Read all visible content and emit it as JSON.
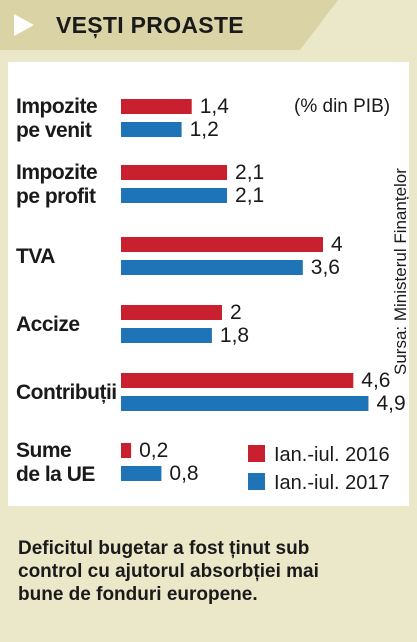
{
  "page": {
    "title": "VEȘTI PROASTE",
    "footnote": "Deficitul bugetar a fost ținut sub\ncontrol cu ajutorul absorbției mai\nbune de fonduri europene."
  },
  "chart_data": {
    "type": "bar",
    "orientation": "horizontal",
    "unit_note": "(% din PIB)",
    "source": "Sursa: Ministerul Finanțelor",
    "categories": [
      [
        "Impozite",
        "pe venit"
      ],
      [
        "Impozite",
        "pe profit"
      ],
      [
        "TVA"
      ],
      [
        "Accize"
      ],
      [
        "Contribuții"
      ],
      [
        "Sume",
        "de la UE"
      ]
    ],
    "series": [
      {
        "name": "Ian.-iul. 2016",
        "color": "#c8202e",
        "values": [
          1.4,
          2.1,
          4,
          2,
          4.6,
          0.2
        ]
      },
      {
        "name": "Ian.-iul. 2017",
        "color": "#1f73b7",
        "values": [
          1.2,
          2.1,
          3.6,
          1.8,
          4.9,
          0.8
        ]
      }
    ],
    "value_labels": [
      [
        "1,4",
        "2,1",
        "4",
        "2",
        "4,6",
        "0,2"
      ],
      [
        "1,2",
        "2,1",
        "3,6",
        "1,8",
        "4,9",
        "0,8"
      ]
    ],
    "xlim": [
      0,
      5
    ],
    "grid": false,
    "legend_position": "bottom-right"
  }
}
